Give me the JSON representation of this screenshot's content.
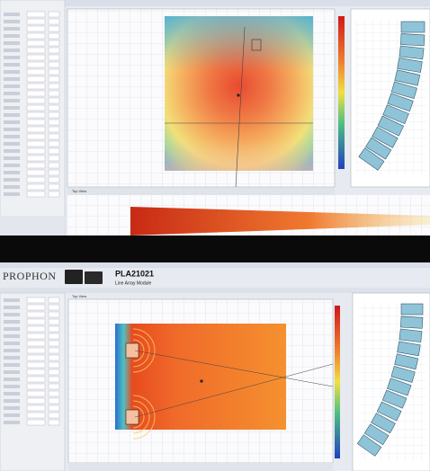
{
  "header": {
    "brand": "PROPHON",
    "model": "PLA21021",
    "subtitle": "Line Array Module"
  },
  "views": {
    "top_tab": "Top View",
    "bottom_tab": "Top View"
  }
}
